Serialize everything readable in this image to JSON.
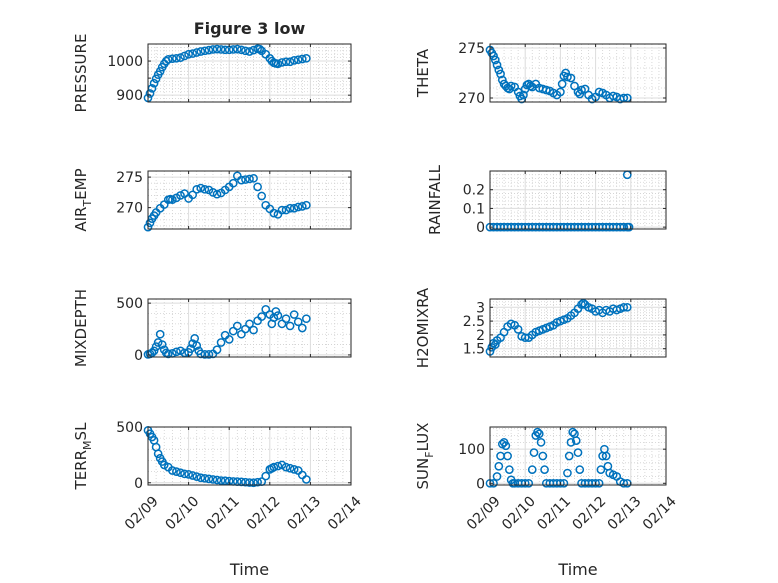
{
  "chart_data": {
    "type": "scatter",
    "title": "Figure 3 low",
    "marker": "open-circle",
    "color": "#0072BD",
    "grid": true,
    "x_tick_labels": [
      "02/09",
      "02/10",
      "02/11",
      "02/12",
      "02/13",
      "02/14"
    ],
    "x_ticks": [
      9,
      10,
      11,
      12,
      13,
      14
    ],
    "xlim": [
      9,
      14
    ],
    "xlabel": "Time",
    "subplots": [
      {
        "id": "pressure",
        "ylabel": "PRESSURE",
        "ylabel_sub": "",
        "title": "Figure 3 low",
        "ylim": [
          880,
          1050
        ],
        "yticks": [
          900,
          950,
          1000
        ],
        "ytick_labels": [
          "900",
          "",
          "1000"
        ],
        "x": [
          9.0,
          9.05,
          9.1,
          9.15,
          9.2,
          9.25,
          9.3,
          9.35,
          9.4,
          9.45,
          9.5,
          9.6,
          9.7,
          9.8,
          9.9,
          10.0,
          10.1,
          10.2,
          10.3,
          10.4,
          10.5,
          10.6,
          10.7,
          10.8,
          10.9,
          11.0,
          11.1,
          11.2,
          11.3,
          11.4,
          11.5,
          11.6,
          11.7,
          11.75,
          11.8,
          11.9,
          12.0,
          12.05,
          12.1,
          12.15,
          12.2,
          12.3,
          12.4,
          12.5,
          12.6,
          12.7,
          12.8,
          12.9
        ],
        "y": [
          892,
          905,
          920,
          935,
          948,
          960,
          970,
          982,
          992,
          1000,
          1005,
          1007,
          1008,
          1010,
          1015,
          1020,
          1022,
          1025,
          1028,
          1030,
          1032,
          1034,
          1035,
          1034,
          1033,
          1033,
          1034,
          1035,
          1033,
          1030,
          1028,
          1032,
          1036,
          1035,
          1030,
          1020,
          1008,
          1000,
          995,
          993,
          992,
          996,
          998,
          998,
          1002,
          1004,
          1006,
          1008
        ]
      },
      {
        "id": "theta",
        "ylabel": "THETA",
        "ylabel_sub": "",
        "ylim": [
          269.6,
          275.4
        ],
        "yticks": [
          270,
          275
        ],
        "ytick_labels": [
          "270",
          "275"
        ],
        "x": [
          9.0,
          9.05,
          9.1,
          9.15,
          9.2,
          9.25,
          9.3,
          9.35,
          9.4,
          9.45,
          9.5,
          9.55,
          9.6,
          9.7,
          9.8,
          9.85,
          9.9,
          9.95,
          10.0,
          10.05,
          10.1,
          10.15,
          10.2,
          10.3,
          10.4,
          10.5,
          10.6,
          10.7,
          10.8,
          10.9,
          11.0,
          11.05,
          11.1,
          11.15,
          11.2,
          11.3,
          11.4,
          11.5,
          11.55,
          11.6,
          11.7,
          11.8,
          11.9,
          12.0,
          12.1,
          12.2,
          12.3,
          12.4,
          12.5,
          12.6,
          12.7,
          12.8,
          12.9
        ],
        "y": [
          274.8,
          274.5,
          274.2,
          273.8,
          273.3,
          272.8,
          272.4,
          271.8,
          271.4,
          271.2,
          271.0,
          270.9,
          271.2,
          271.1,
          270.6,
          270.2,
          269.9,
          270.3,
          270.9,
          271.3,
          271.4,
          271.2,
          271.1,
          271.4,
          271.0,
          270.9,
          270.8,
          270.7,
          270.5,
          270.3,
          270.6,
          271.4,
          272.2,
          272.5,
          272.1,
          272.0,
          271.2,
          270.6,
          270.4,
          270.8,
          270.9,
          270.3,
          269.9,
          270.1,
          270.6,
          270.5,
          270.3,
          270.0,
          270.2,
          270.1,
          269.9,
          270.0,
          270.0
        ]
      },
      {
        "id": "air_temp",
        "ylabel": "AIR",
        "ylabel_sub": "T",
        "ylabel_rest": "EMP",
        "ylim": [
          266.5,
          276.0
        ],
        "yticks": [
          270,
          275
        ],
        "ytick_labels": [
          "270",
          "275"
        ],
        "x": [
          9.0,
          9.05,
          9.1,
          9.15,
          9.2,
          9.3,
          9.4,
          9.5,
          9.55,
          9.6,
          9.7,
          9.8,
          9.9,
          10.0,
          10.1,
          10.2,
          10.3,
          10.4,
          10.5,
          10.6,
          10.7,
          10.8,
          10.9,
          11.0,
          11.1,
          11.2,
          11.3,
          11.4,
          11.5,
          11.6,
          11.7,
          11.8,
          11.9,
          12.0,
          12.1,
          12.2,
          12.3,
          12.4,
          12.5,
          12.6,
          12.7,
          12.8,
          12.9
        ],
        "y": [
          266.8,
          267.5,
          268.2,
          268.7,
          269.2,
          269.9,
          270.5,
          271.3,
          271.4,
          271.3,
          271.6,
          272.0,
          272.3,
          271.5,
          272.1,
          273.0,
          273.2,
          273.0,
          272.9,
          272.5,
          272.2,
          272.4,
          272.9,
          273.4,
          274.0,
          275.2,
          274.5,
          274.6,
          274.7,
          274.8,
          273.4,
          271.9,
          270.4,
          269.8,
          269.1,
          268.9,
          269.6,
          269.6,
          269.9,
          269.9,
          270.1,
          270.2,
          270.4
        ]
      },
      {
        "id": "rainfall",
        "ylabel": "RAINFALL",
        "ylabel_sub": "",
        "ylim": [
          -0.01,
          0.3
        ],
        "yticks": [
          0,
          0.1,
          0.2
        ],
        "ytick_labels": [
          "0",
          "0.1",
          "0.2"
        ],
        "x": [
          9.0,
          9.1,
          9.2,
          9.3,
          9.4,
          9.5,
          9.6,
          9.7,
          9.8,
          9.9,
          10.0,
          10.1,
          10.2,
          10.3,
          10.4,
          10.5,
          10.6,
          10.7,
          10.8,
          10.9,
          11.0,
          11.1,
          11.2,
          11.3,
          11.4,
          11.5,
          11.6,
          11.7,
          11.8,
          11.9,
          12.0,
          12.1,
          12.2,
          12.3,
          12.4,
          12.5,
          12.6,
          12.7,
          12.8,
          12.9,
          12.95,
          12.9
        ],
        "y": [
          0,
          0,
          0,
          0,
          0,
          0,
          0,
          0,
          0,
          0,
          0,
          0,
          0,
          0,
          0,
          0,
          0,
          0,
          0,
          0,
          0,
          0,
          0,
          0,
          0,
          0,
          0,
          0,
          0,
          0,
          0,
          0,
          0,
          0,
          0,
          0,
          0,
          0,
          0,
          0,
          0,
          0.28
        ]
      },
      {
        "id": "mixdepth",
        "ylabel": "MIXDEPTH",
        "ylabel_sub": "",
        "ylim": [
          -20,
          540
        ],
        "yticks": [
          0,
          500
        ],
        "ytick_labels": [
          "0",
          "500"
        ],
        "x": [
          9.0,
          9.05,
          9.1,
          9.15,
          9.2,
          9.25,
          9.3,
          9.35,
          9.4,
          9.45,
          9.5,
          9.6,
          9.7,
          9.8,
          9.9,
          10.0,
          10.05,
          10.1,
          10.15,
          10.2,
          10.25,
          10.3,
          10.4,
          10.5,
          10.6,
          10.7,
          10.8,
          10.9,
          11.0,
          11.1,
          11.2,
          11.3,
          11.4,
          11.5,
          11.6,
          11.7,
          11.8,
          11.9,
          12.0,
          12.05,
          12.1,
          12.15,
          12.2,
          12.3,
          12.4,
          12.5,
          12.6,
          12.7,
          12.8,
          12.9
        ],
        "y": [
          5,
          10,
          20,
          40,
          80,
          120,
          200,
          100,
          50,
          20,
          10,
          15,
          30,
          40,
          20,
          25,
          60,
          110,
          160,
          90,
          40,
          10,
          5,
          5,
          10,
          50,
          120,
          190,
          150,
          230,
          280,
          200,
          250,
          300,
          240,
          330,
          370,
          440,
          390,
          300,
          360,
          420,
          380,
          300,
          350,
          280,
          390,
          320,
          260,
          350
        ]
      },
      {
        "id": "h2omixra",
        "ylabel": "H2OMIXRA",
        "ylabel_sub": "",
        "ylim": [
          1.2,
          3.3
        ],
        "yticks": [
          1.5,
          2,
          2.5,
          3
        ],
        "ytick_labels": [
          "1.5",
          "2",
          "2.5",
          "3"
        ],
        "x": [
          9.0,
          9.05,
          9.1,
          9.15,
          9.2,
          9.3,
          9.4,
          9.5,
          9.6,
          9.7,
          9.8,
          9.9,
          10.0,
          10.1,
          10.2,
          10.3,
          10.4,
          10.5,
          10.6,
          10.7,
          10.8,
          10.9,
          11.0,
          11.1,
          11.2,
          11.3,
          11.4,
          11.5,
          11.6,
          11.65,
          11.7,
          11.8,
          11.9,
          12.0,
          12.1,
          12.2,
          12.3,
          12.4,
          12.5,
          12.6,
          12.7,
          12.8,
          12.9
        ],
        "y": [
          1.4,
          1.55,
          1.7,
          1.65,
          1.8,
          1.9,
          2.1,
          2.3,
          2.4,
          2.35,
          2.2,
          1.95,
          1.9,
          1.9,
          2.0,
          2.1,
          2.15,
          2.2,
          2.25,
          2.3,
          2.35,
          2.45,
          2.5,
          2.55,
          2.6,
          2.7,
          2.8,
          2.95,
          3.1,
          3.15,
          3.1,
          3.0,
          2.95,
          2.85,
          2.9,
          2.8,
          2.9,
          2.85,
          2.95,
          2.9,
          2.95,
          3.0,
          3.0
        ]
      },
      {
        "id": "terr_msl",
        "ylabel": "TERR",
        "ylabel_sub": "M",
        "ylabel_rest": "SL",
        "ylim": [
          -20,
          500
        ],
        "yticks": [
          0,
          500
        ],
        "ytick_labels": [
          "0",
          "500"
        ],
        "x": [
          9.0,
          9.05,
          9.1,
          9.15,
          9.2,
          9.25,
          9.3,
          9.35,
          9.4,
          9.5,
          9.6,
          9.7,
          9.8,
          9.9,
          10.0,
          10.1,
          10.2,
          10.3,
          10.4,
          10.5,
          10.6,
          10.7,
          10.8,
          10.9,
          11.0,
          11.1,
          11.2,
          11.3,
          11.4,
          11.5,
          11.6,
          11.7,
          11.8,
          11.9,
          12.0,
          12.05,
          12.1,
          12.2,
          12.3,
          12.4,
          12.5,
          12.6,
          12.7,
          12.8,
          12.9
        ],
        "y": [
          470,
          440,
          410,
          380,
          320,
          260,
          220,
          190,
          160,
          140,
          110,
          100,
          90,
          80,
          75,
          65,
          55,
          45,
          40,
          35,
          30,
          25,
          20,
          18,
          15,
          12,
          10,
          8,
          5,
          2,
          0,
          5,
          10,
          60,
          120,
          130,
          140,
          150,
          160,
          140,
          130,
          120,
          110,
          70,
          30
        ]
      },
      {
        "id": "sun_flux",
        "ylabel": "SUN",
        "ylabel_sub": "F",
        "ylabel_rest": "LUX",
        "ylim": [
          -5,
          165
        ],
        "yticks": [
          0,
          100
        ],
        "ytick_labels": [
          "0",
          "100"
        ],
        "x": [
          9.0,
          9.1,
          9.2,
          9.25,
          9.3,
          9.35,
          9.4,
          9.45,
          9.5,
          9.55,
          9.6,
          9.65,
          9.7,
          9.8,
          9.9,
          10.0,
          10.1,
          10.2,
          10.25,
          10.3,
          10.35,
          10.4,
          10.45,
          10.5,
          10.55,
          10.6,
          10.7,
          10.8,
          10.9,
          11.0,
          11.1,
          11.2,
          11.25,
          11.3,
          11.35,
          11.4,
          11.45,
          11.5,
          11.55,
          11.6,
          11.7,
          11.8,
          11.9,
          12.0,
          12.1,
          12.15,
          12.2,
          12.25,
          12.3,
          12.35,
          12.4,
          12.5,
          12.6,
          12.7,
          12.8,
          12.9
        ],
        "y": [
          0,
          0,
          20,
          50,
          80,
          115,
          120,
          110,
          80,
          40,
          10,
          0,
          0,
          0,
          0,
          0,
          0,
          40,
          90,
          140,
          150,
          145,
          120,
          80,
          40,
          0,
          0,
          0,
          0,
          0,
          0,
          30,
          80,
          120,
          150,
          145,
          125,
          90,
          40,
          0,
          0,
          0,
          0,
          0,
          0,
          40,
          80,
          100,
          80,
          50,
          30,
          25,
          20,
          5,
          0,
          0
        ]
      }
    ]
  }
}
